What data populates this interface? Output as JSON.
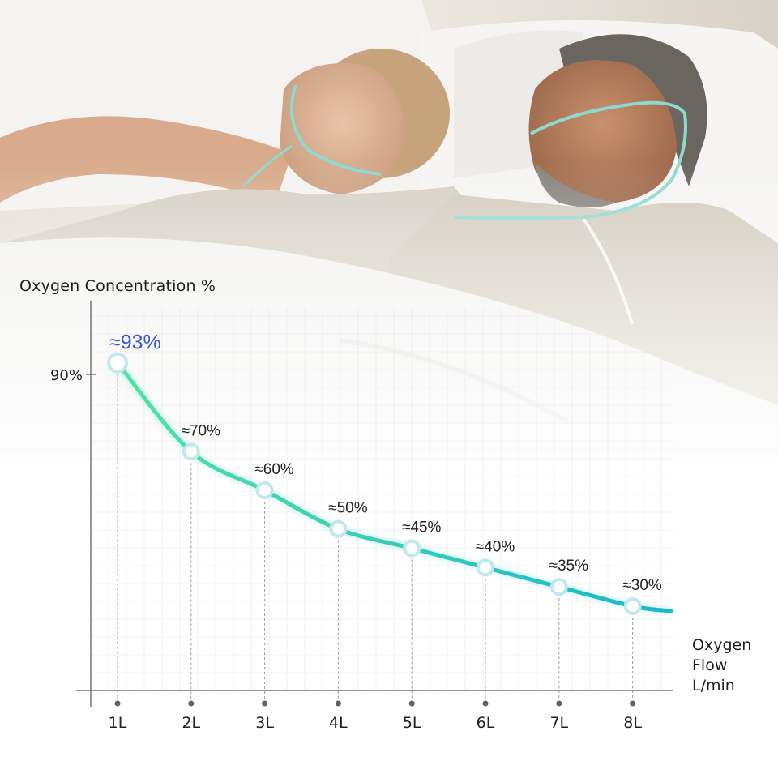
{
  "chart_data": {
    "type": "line",
    "ylabel": "Oxygen Concentration %",
    "xlabel_lines": [
      "Oxygen",
      "Flow",
      "L/min"
    ],
    "y_tick": "90%",
    "categories": [
      "1L",
      "2L",
      "3L",
      "4L",
      "5L",
      "6L",
      "7L",
      "8L"
    ],
    "values": [
      93,
      70,
      60,
      50,
      45,
      40,
      35,
      30
    ],
    "data_labels": [
      "≈93%",
      "≈70%",
      "≈60%",
      "≈50%",
      "≈45%",
      "≈40%",
      "≈35%",
      "≈30%"
    ],
    "colors": {
      "line_start": "#4fe3a3",
      "line_end": "#19b8c9",
      "highlight_label": "#3a55d6",
      "label": "#222222",
      "axis": "#555555"
    }
  }
}
